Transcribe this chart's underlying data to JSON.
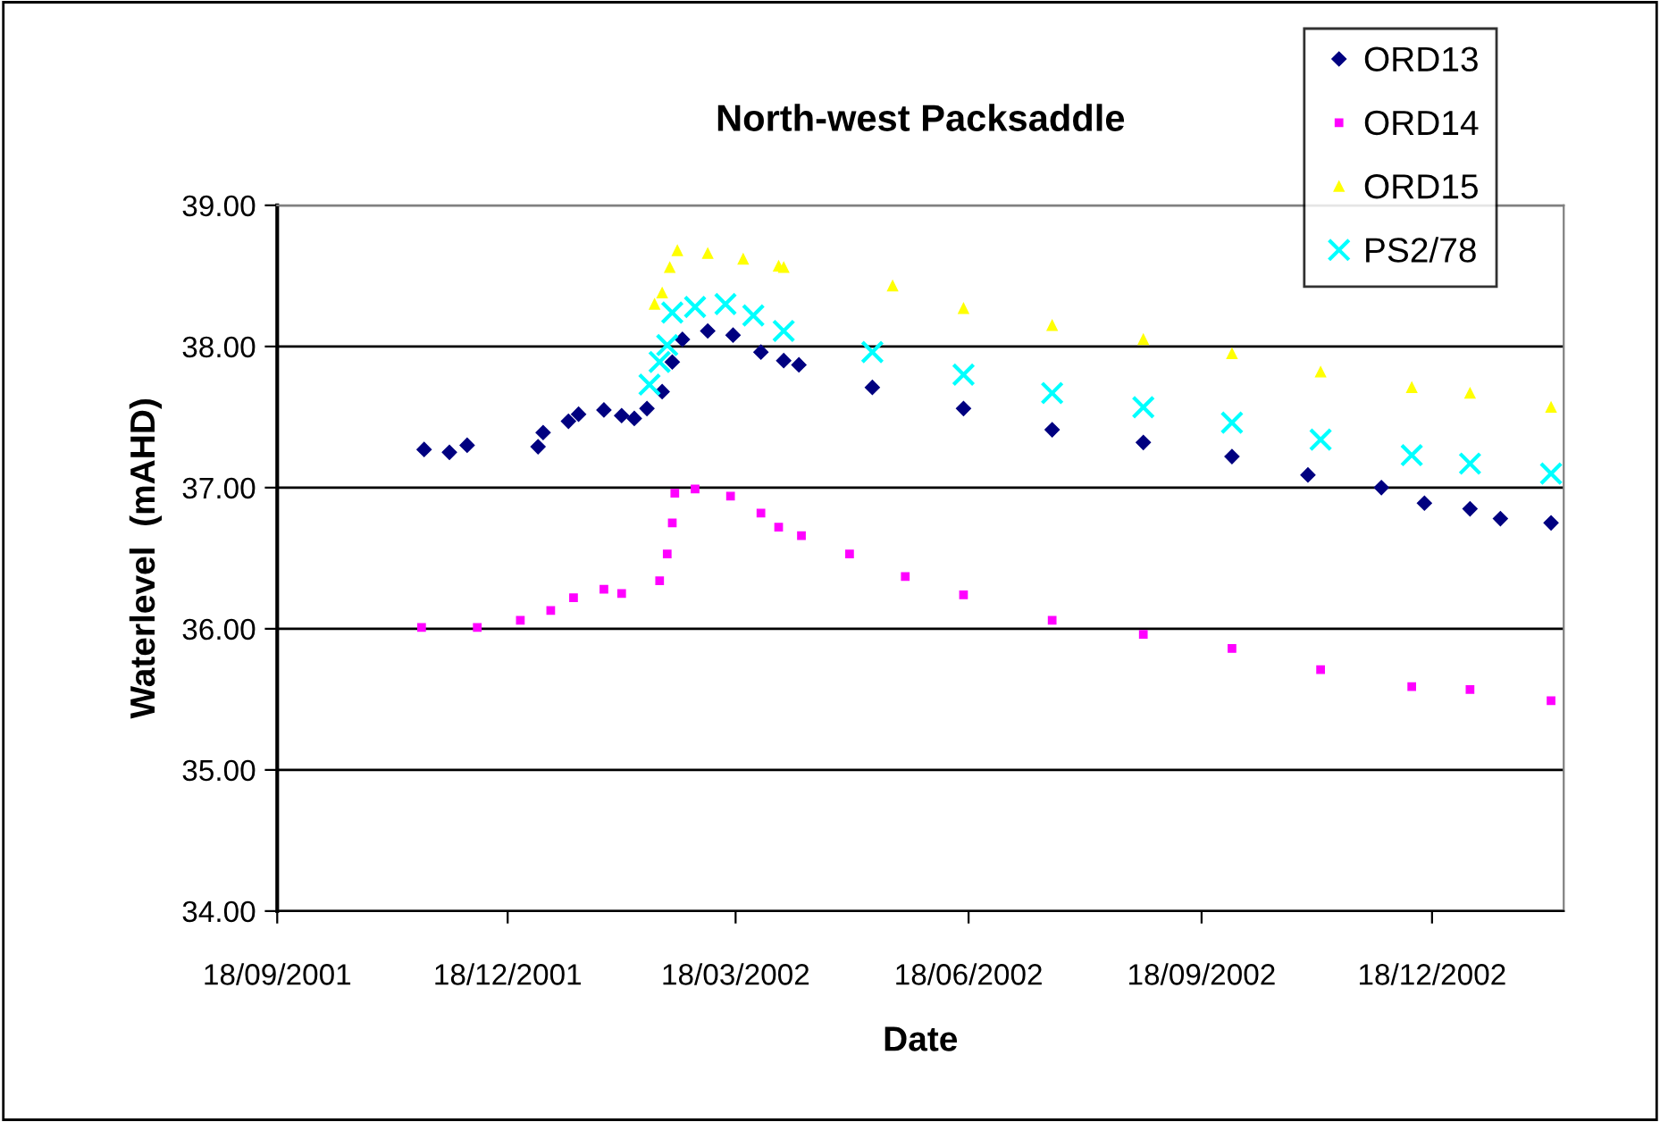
{
  "chart_data": {
    "type": "scatter",
    "title": "North-west Packsaddle",
    "xlabel": "Date",
    "ylabel": "Waterlevel  (mAHD)",
    "xlim": [
      "2001-09-18",
      "2003-02-08"
    ],
    "xticks": [
      {
        "value": "2001-09-18",
        "label": "18/09/2001"
      },
      {
        "value": "2001-12-18",
        "label": "18/12/2001"
      },
      {
        "value": "2002-03-18",
        "label": "18/03/2002"
      },
      {
        "value": "2002-06-18",
        "label": "18/06/2002"
      },
      {
        "value": "2002-09-18",
        "label": "18/09/2002"
      },
      {
        "value": "2002-12-18",
        "label": "18/12/2002"
      }
    ],
    "ylim": [
      34,
      39
    ],
    "yticks": [
      {
        "value": 34,
        "label": "34.00"
      },
      {
        "value": 35,
        "label": "35.00"
      },
      {
        "value": 36,
        "label": "36.00"
      },
      {
        "value": 37,
        "label": "37.00"
      },
      {
        "value": 38,
        "label": "38.00"
      },
      {
        "value": 39,
        "label": "39.00"
      }
    ],
    "grid": "y",
    "legend": "top right",
    "series": [
      {
        "name": "ORD13",
        "color": "#000080",
        "marker": "diamond",
        "x": [
          "2001-11-15",
          "2001-11-25",
          "2001-12-02",
          "2001-12-30",
          "2002-01-01",
          "2002-01-11",
          "2002-01-15",
          "2002-01-25",
          "2002-02-01",
          "2002-02-06",
          "2002-02-11",
          "2002-02-17",
          "2002-02-21",
          "2002-02-25",
          "2002-03-07",
          "2002-03-17",
          "2002-03-28",
          "2002-04-06",
          "2002-04-12",
          "2002-05-11",
          "2002-06-16",
          "2002-07-21",
          "2002-08-26",
          "2002-09-30",
          "2002-10-30",
          "2002-11-28",
          "2002-12-15",
          "2003-01-02",
          "2003-01-14",
          "2003-02-03"
        ],
        "values": [
          37.27,
          37.25,
          37.3,
          37.29,
          37.39,
          37.47,
          37.52,
          37.55,
          37.51,
          37.49,
          37.56,
          37.68,
          37.89,
          38.05,
          38.11,
          38.08,
          37.96,
          37.9,
          37.87,
          37.71,
          37.56,
          37.41,
          37.32,
          37.22,
          37.09,
          37.0,
          36.89,
          36.85,
          36.78,
          36.75
        ]
      },
      {
        "name": "ORD14",
        "color": "#ff00ff",
        "marker": "square",
        "x": [
          "2001-11-14",
          "2001-12-06",
          "2001-12-23",
          "2002-01-04",
          "2002-01-13",
          "2002-01-25",
          "2002-02-01",
          "2002-02-16",
          "2002-02-19",
          "2002-02-21",
          "2002-02-22",
          "2002-03-02",
          "2002-03-16",
          "2002-03-28",
          "2002-04-04",
          "2002-04-13",
          "2002-05-02",
          "2002-05-24",
          "2002-06-16",
          "2002-07-21",
          "2002-08-26",
          "2002-09-30",
          "2002-11-04",
          "2002-12-10",
          "2003-01-02",
          "2003-02-03"
        ],
        "values": [
          36.01,
          36.01,
          36.06,
          36.13,
          36.22,
          36.28,
          36.25,
          36.34,
          36.53,
          36.75,
          36.96,
          36.99,
          36.94,
          36.82,
          36.72,
          36.66,
          36.53,
          36.37,
          36.24,
          36.06,
          35.96,
          35.86,
          35.71,
          35.59,
          35.57,
          35.49
        ]
      },
      {
        "name": "ORD15",
        "color": "#ffff00",
        "marker": "triangle",
        "x": [
          "2002-02-14",
          "2002-02-17",
          "2002-02-20",
          "2002-02-23",
          "2002-03-07",
          "2002-03-21",
          "2002-04-04",
          "2002-04-06",
          "2002-05-19",
          "2002-06-16",
          "2002-07-21",
          "2002-08-26",
          "2002-09-30",
          "2002-11-04",
          "2002-12-10",
          "2003-01-02",
          "2003-02-03"
        ],
        "values": [
          38.3,
          38.38,
          38.56,
          38.68,
          38.66,
          38.62,
          38.57,
          38.56,
          38.43,
          38.27,
          38.15,
          38.05,
          37.95,
          37.82,
          37.71,
          37.67,
          37.57
        ]
      },
      {
        "name": "PS2/78",
        "color": "#00ffff",
        "marker": "cross",
        "x": [
          "2002-02-12",
          "2002-02-16",
          "2002-02-19",
          "2002-02-21",
          "2002-03-02",
          "2002-03-14",
          "2002-03-25",
          "2002-04-06",
          "2002-05-11",
          "2002-06-16",
          "2002-07-21",
          "2002-08-26",
          "2002-09-30",
          "2002-11-04",
          "2002-12-10",
          "2003-01-02",
          "2003-02-03"
        ],
        "values": [
          37.73,
          37.89,
          38.01,
          38.24,
          38.28,
          38.3,
          38.22,
          38.11,
          37.96,
          37.8,
          37.67,
          37.57,
          37.46,
          37.34,
          37.23,
          37.17,
          37.1
        ]
      }
    ]
  }
}
